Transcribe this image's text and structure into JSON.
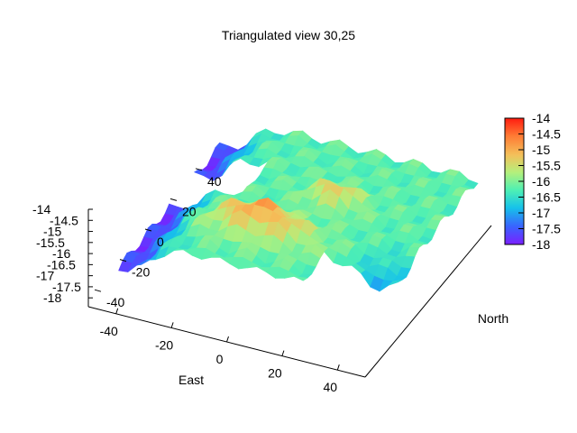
{
  "chart_data": {
    "type": "surface",
    "title": "Triangulated view 30,25",
    "view": [
      30,
      25
    ],
    "xlabel": "East",
    "ylabel": "North",
    "zlabel": "",
    "xlim": [
      -50,
      50
    ],
    "ylim": [
      -50,
      50
    ],
    "zlim": [
      -18.4,
      -14
    ],
    "x_ticks": [
      "-40",
      "-20",
      "0",
      "20",
      "40"
    ],
    "y_ticks": [
      "-40",
      "-20",
      "0",
      "20",
      "40"
    ],
    "z_ticks": [
      "-14",
      "-14.5",
      "-15",
      "-15.5",
      "-16",
      "-16.5",
      "-17",
      "-17.5",
      "-18"
    ],
    "colorbar": {
      "range": [
        -18,
        -14
      ],
      "ticks": [
        "-14",
        "-14.5",
        "-15",
        "-15.5",
        "-16",
        "-16.5",
        "-17",
        "-17.5",
        "-18"
      ],
      "palette": [
        "#7b1fff",
        "#3a62ff",
        "#16c2ea",
        "#4ef0b4",
        "#b4f07c",
        "#f4c05a",
        "#ff7a34",
        "#ff1c10"
      ]
    },
    "grid": false
  }
}
